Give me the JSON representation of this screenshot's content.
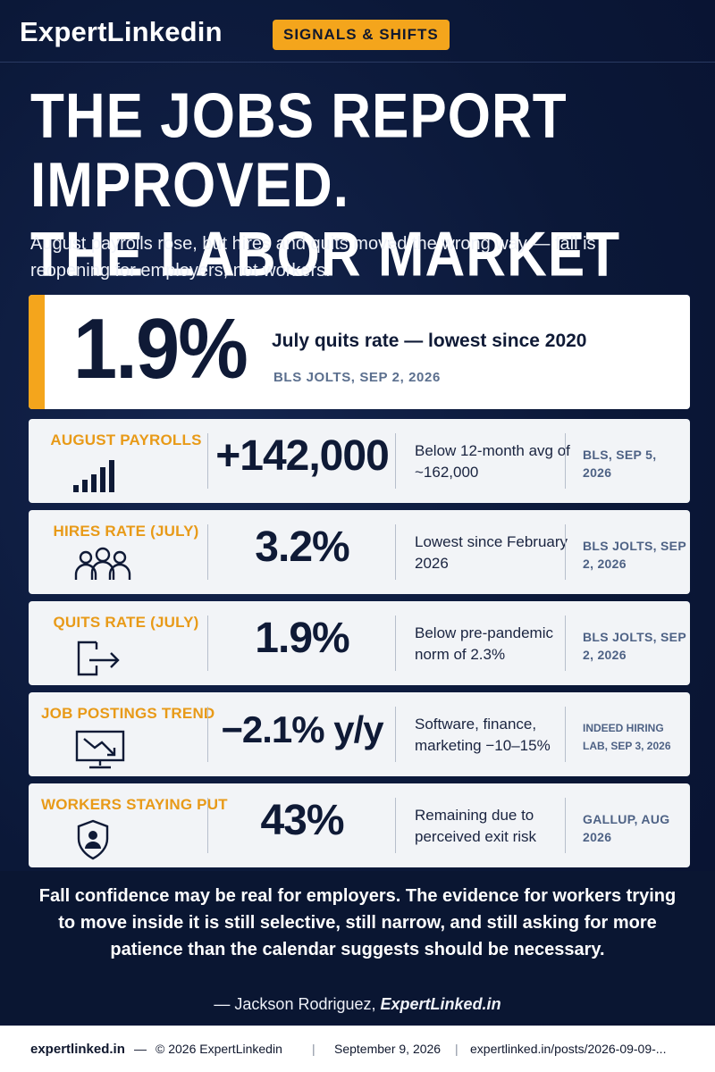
{
  "header": {
    "brand": "ExpertLinkedin",
    "tag": "SIGNALS & SHIFTS"
  },
  "headline": {
    "line1": "THE JOBS REPORT IMPROVED.",
    "line2": "THE LABOR MARKET DID NOT."
  },
  "subhead": "August payrolls rose, but hires and quits moved the wrong way — fall is reopening for employers, not workers.",
  "hero": {
    "value": "1.9%",
    "label": "July quits rate — lowest since 2020",
    "source": "BLS JOLTS, SEP 2, 2026",
    "accent_color": "#f4a51c"
  },
  "stats": [
    {
      "label": "AUGUST PAYROLLS",
      "icon": "bar-chart-icon",
      "value": "+142,000",
      "note": "Below 12-month avg of ~162,000",
      "source": "BLS, SEP 5, 2026"
    },
    {
      "label": "HIRES RATE (JULY)",
      "icon": "people-group-icon",
      "value": "3.2%",
      "note": "Lowest since February 2026",
      "source": "BLS JOLTS, SEP 2, 2026"
    },
    {
      "label": "QUITS RATE (JULY)",
      "icon": "exit-arrow-icon",
      "value": "1.9%",
      "note": "Below pre-pandemic norm of 2.3%",
      "source": "BLS JOLTS, SEP 2, 2026"
    },
    {
      "label": "JOB POSTINGS TREND",
      "icon": "monitor-trend-down-icon",
      "value": "−2.1% y/y",
      "note": "Software, finance, marketing −10–15%",
      "source": "INDEED HIRING LAB, SEP 3, 2026"
    },
    {
      "label": "WORKERS STAYING PUT",
      "icon": "shield-person-icon",
      "value": "43%",
      "note": "Remaining due to perceived exit risk",
      "source": "GALLUP, AUG 2026"
    }
  ],
  "quote": {
    "text": "Fall confidence may be real for employers. The evidence for workers trying to move inside it is still selective, still narrow, and still asking for more patience than the calendar suggests should be necessary.",
    "author": "— Jackson Rodriguez,",
    "site": "ExpertLinked.in"
  },
  "footer": {
    "domain": "expertlinked.in",
    "dash": "—",
    "copyright": "© 2026 ExpertLinkedin",
    "date": "September 9, 2026",
    "url": "expertlinked.in/posts/2026-09-09-..."
  },
  "colors": {
    "accent": "#f4a51c",
    "navy": "#0b1838",
    "label_orange": "#e89a18"
  }
}
